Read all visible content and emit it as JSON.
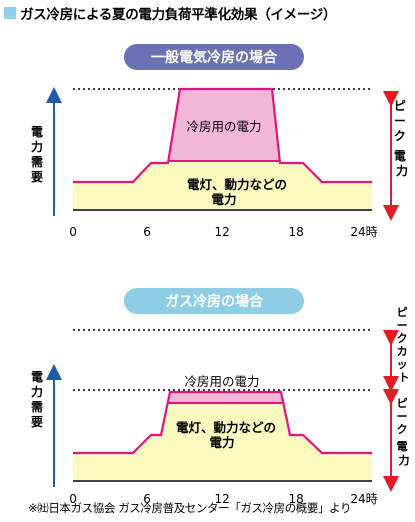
{
  "header": {
    "title": "ガス冷房による夏の電力負荷平準化効果（イメージ）",
    "square_color": "#8fcfe8"
  },
  "colors": {
    "electric_pill": "#6b71b2",
    "gas_pill": "#8ecde3",
    "cooling_fill": "#f2b7d6",
    "base_fill": "#fcf9bf",
    "load_line": "#e0157f",
    "arrow_blue": "#1e5ba8",
    "arrow_red": "#e21b24"
  },
  "axis": {
    "ticks": [
      "0",
      "6",
      "12",
      "18",
      "24時"
    ],
    "y_label": [
      "電",
      "力",
      "需",
      "要"
    ]
  },
  "charts": {
    "electric": {
      "pill_label": "一般電気冷房の場合",
      "cooling_label": "冷房用の電力",
      "base_label_line1": "電灯、動力などの",
      "base_label_line2": "電力",
      "right_label": [
        "ピ",
        "ー",
        "ク",
        "電",
        "力"
      ]
    },
    "gas": {
      "pill_label": "ガス冷房の場合",
      "cooling_label": "冷房用の電力",
      "base_label_line1": "電灯、動力などの",
      "base_label_line2": "電力",
      "right_label_top": [
        "ピ",
        "ー",
        "ク",
        "カ",
        "ッ",
        "ト"
      ],
      "right_label_bottom": [
        "ピ",
        "ー",
        "ク",
        "電",
        "力"
      ]
    }
  },
  "source_note": "※㈳日本ガス協会 ガス冷房普及センター「ガス冷房の概要」より"
}
